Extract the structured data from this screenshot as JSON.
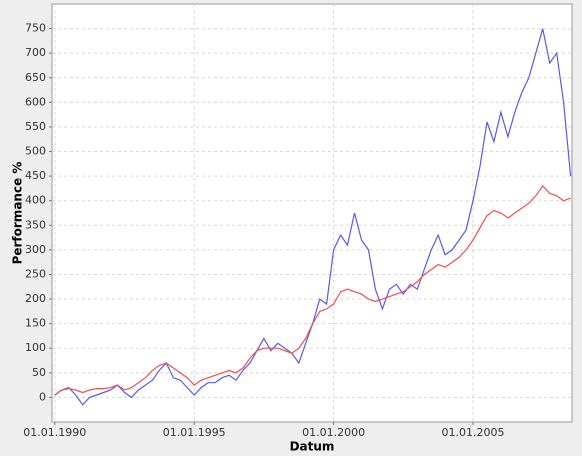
{
  "chart_data": {
    "type": "line",
    "x_label": "Datum",
    "y_label": "Performance %",
    "x": [
      1990,
      1990.25,
      1990.5,
      1990.75,
      1991,
      1991.25,
      1991.5,
      1991.75,
      1992,
      1992.25,
      1992.5,
      1992.75,
      1993,
      1993.25,
      1993.5,
      1993.75,
      1994,
      1994.25,
      1994.5,
      1994.75,
      1995,
      1995.25,
      1995.5,
      1995.75,
      1996,
      1996.25,
      1996.5,
      1996.75,
      1997,
      1997.25,
      1997.5,
      1997.75,
      1998,
      1998.25,
      1998.5,
      1998.75,
      1999,
      1999.25,
      1999.5,
      1999.75,
      2000,
      2000.25,
      2000.5,
      2000.75,
      2001,
      2001.25,
      2001.5,
      2001.75,
      2002,
      2002.25,
      2002.5,
      2002.75,
      2003,
      2003.25,
      2003.5,
      2003.75,
      2004,
      2004.25,
      2004.5,
      2004.75,
      2005,
      2005.25,
      2005.5,
      2005.75,
      2006,
      2006.25,
      2006.5,
      2006.75,
      2007,
      2007.25,
      2007.5,
      2007.75,
      2008,
      2008.25,
      2008.5
    ],
    "series": [
      {
        "color": "#5a5ae6",
        "values": [
          5,
          15,
          20,
          5,
          -15,
          0,
          5,
          10,
          15,
          25,
          10,
          0,
          15,
          25,
          35,
          55,
          70,
          40,
          35,
          20,
          5,
          20,
          30,
          30,
          40,
          45,
          35,
          55,
          70,
          95,
          120,
          95,
          110,
          100,
          90,
          70,
          110,
          150,
          200,
          190,
          300,
          330,
          310,
          375,
          320,
          300,
          220,
          180,
          220,
          230,
          210,
          230,
          220,
          260,
          300,
          330,
          290,
          300,
          320,
          340,
          400,
          470,
          560,
          520,
          580,
          530,
          580,
          620,
          650,
          700,
          750,
          680,
          700,
          600,
          450
        ]
      },
      {
        "color": "#f05050",
        "values": [
          5,
          15,
          18,
          15,
          10,
          15,
          18,
          18,
          20,
          25,
          15,
          20,
          30,
          40,
          55,
          65,
          70,
          60,
          50,
          40,
          25,
          35,
          40,
          45,
          50,
          55,
          50,
          60,
          80,
          95,
          100,
          100,
          100,
          95,
          90,
          100,
          120,
          150,
          175,
          180,
          190,
          215,
          220,
          215,
          210,
          200,
          195,
          200,
          205,
          210,
          215,
          225,
          235,
          250,
          260,
          270,
          265,
          275,
          285,
          300,
          320,
          345,
          370,
          380,
          375,
          365,
          375,
          385,
          395,
          410,
          430,
          415,
          410,
          400,
          405
        ]
      }
    ],
    "xlim": [
      1989.9,
      2008.55
    ],
    "ylim": [
      -50,
      800
    ],
    "xticks": [
      {
        "value": 1990,
        "label": "01.01.1990"
      },
      {
        "value": 1995,
        "label": "01.01.1995"
      },
      {
        "value": 2000,
        "label": "01.01.2000"
      },
      {
        "value": 2005,
        "label": "01.01.2005"
      }
    ],
    "yticks": [
      0,
      50,
      100,
      150,
      200,
      250,
      300,
      350,
      400,
      450,
      500,
      550,
      600,
      650,
      700,
      750
    ],
    "grid": true
  }
}
